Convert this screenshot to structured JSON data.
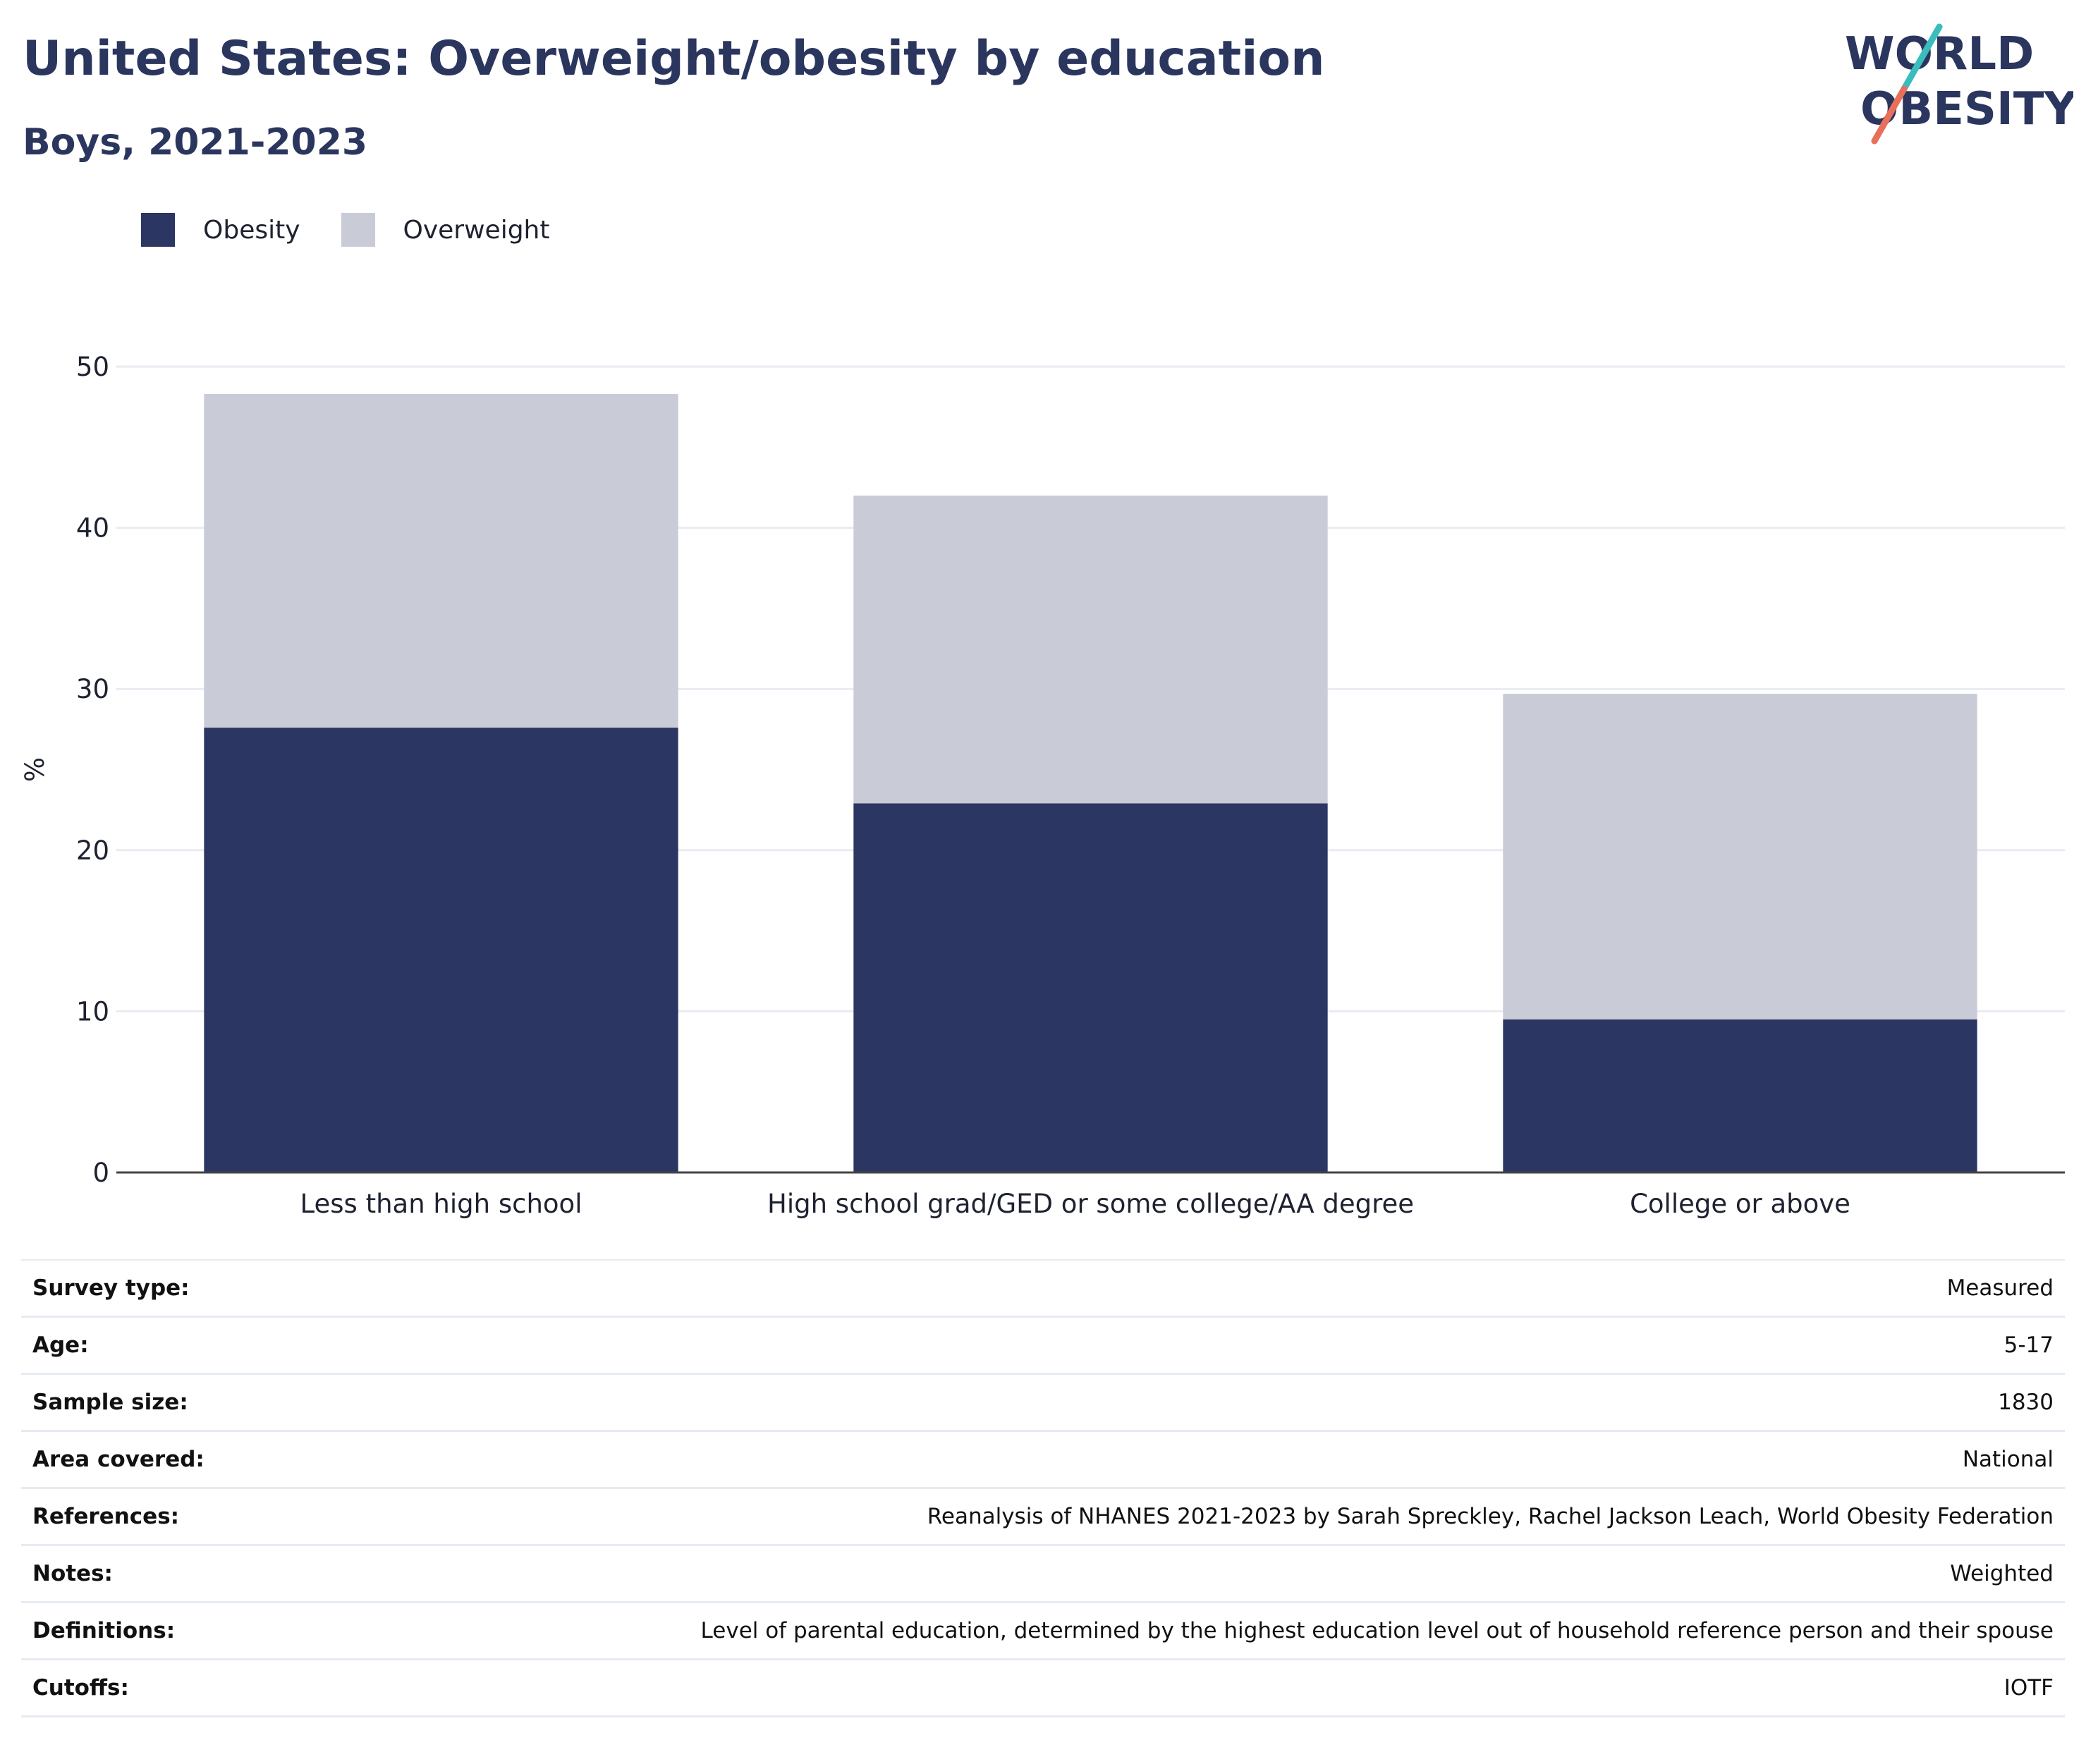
{
  "header": {
    "title": "United States: Overweight/obesity by education",
    "subtitle": "Boys, 2021-2023"
  },
  "logo": {
    "line1": "WORLD",
    "line2": "OBESITY"
  },
  "colors": {
    "obesity": "#2b3663",
    "overweight": "#c9cbd6",
    "text_dark": "#2b365f",
    "grid": "#e8ebf2",
    "axis": "#444444",
    "logo_teal": "#3bbdbd",
    "logo_coral": "#e8705a"
  },
  "legend": [
    {
      "label": "Obesity",
      "color": "#2b3663"
    },
    {
      "label": "Overweight",
      "color": "#c9cbd6"
    }
  ],
  "chart_data": {
    "type": "bar",
    "stacked": true,
    "categories": [
      "Less than high school",
      "High school grad/GED or some college/AA degree",
      "College or above"
    ],
    "series": [
      {
        "name": "Obesity",
        "values": [
          27.6,
          22.9,
          9.5
        ]
      },
      {
        "name": "Overweight",
        "values": [
          20.7,
          19.1,
          20.2
        ]
      }
    ],
    "ylabel": "%",
    "ylim": [
      0,
      50
    ],
    "yticks": [
      0,
      10,
      20,
      30,
      40,
      50
    ],
    "grid": true,
    "legend_position": "top-left"
  },
  "info_table": [
    {
      "key": "Survey type:",
      "value": "Measured"
    },
    {
      "key": "Age:",
      "value": "5-17"
    },
    {
      "key": "Sample size:",
      "value": "1830"
    },
    {
      "key": "Area covered:",
      "value": "National"
    },
    {
      "key": "References:",
      "value": "Reanalysis of NHANES 2021-2023 by Sarah Spreckley, Rachel Jackson Leach, World Obesity Federation"
    },
    {
      "key": "Notes:",
      "value": "Weighted"
    },
    {
      "key": "Definitions:",
      "value": "Level of parental education, determined by the highest education level out of household reference person and their spouse"
    },
    {
      "key": "Cutoffs:",
      "value": "IOTF"
    }
  ]
}
